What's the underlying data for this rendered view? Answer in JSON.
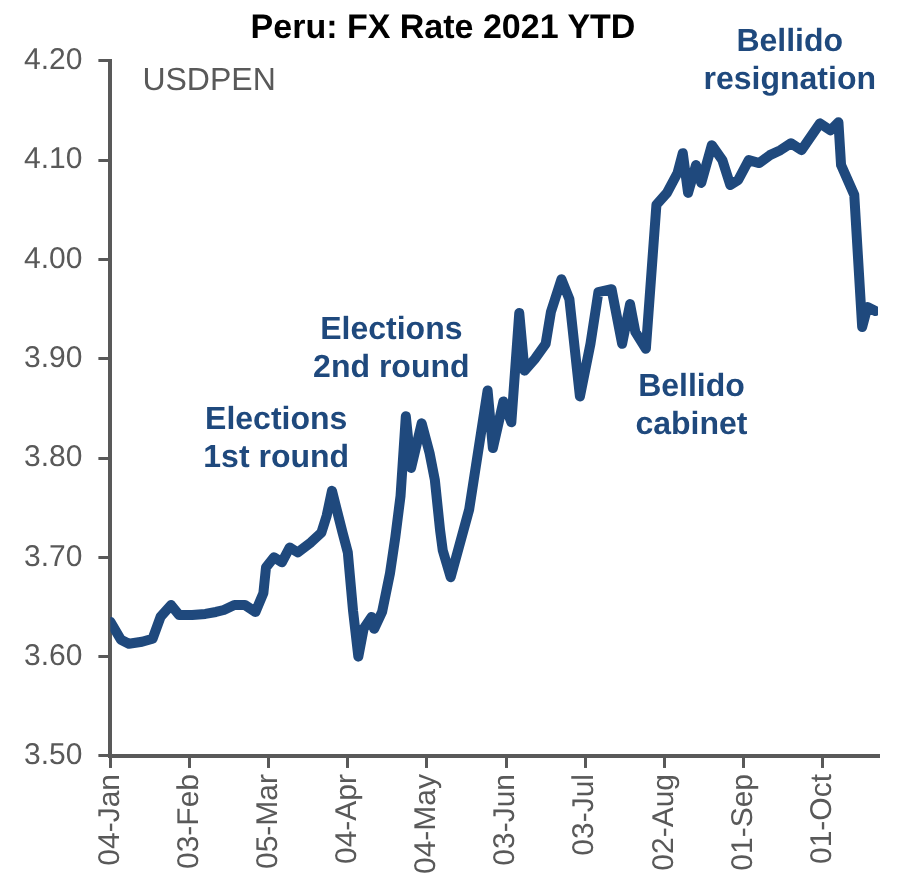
{
  "chart_data": {
    "type": "line",
    "title": "Peru: FX Rate 2021 YTD",
    "ylabel": "USDPEN",
    "xlim": [
      "2021-01-04",
      "2021-10-22"
    ],
    "xticks": [
      {
        "value": "2021-01-04",
        "label": "04-Jan"
      },
      {
        "value": "2021-02-03",
        "label": "03-Feb"
      },
      {
        "value": "2021-03-05",
        "label": "05-Mar"
      },
      {
        "value": "2021-04-04",
        "label": "04-Apr"
      },
      {
        "value": "2021-05-04",
        "label": "04-May"
      },
      {
        "value": "2021-06-03",
        "label": "03-Jun"
      },
      {
        "value": "2021-07-03",
        "label": "03-Jul"
      },
      {
        "value": "2021-08-02",
        "label": "02-Aug"
      },
      {
        "value": "2021-09-01",
        "label": "01-Sep"
      },
      {
        "value": "2021-10-01",
        "label": "01-Oct"
      }
    ],
    "ylim": [
      3.5,
      4.2
    ],
    "yticks": [
      {
        "value": 3.5,
        "label": "3.50"
      },
      {
        "value": 3.6,
        "label": "3.60"
      },
      {
        "value": 3.7,
        "label": "3.70"
      },
      {
        "value": 3.8,
        "label": "3.80"
      },
      {
        "value": 3.9,
        "label": "3.90"
      },
      {
        "value": 4.0,
        "label": "4.00"
      },
      {
        "value": 4.1,
        "label": "4.10"
      },
      {
        "value": 4.2,
        "label": "4.20"
      }
    ],
    "marker": "none",
    "legend": false,
    "series": [
      {
        "color": "#1f497d",
        "x": [
          "2021-01-04",
          "2021-01-08",
          "2021-01-11",
          "2021-01-16",
          "2021-01-20",
          "2021-01-23",
          "2021-01-27",
          "2021-01-30",
          "2021-02-04",
          "2021-02-09",
          "2021-02-13",
          "2021-02-16",
          "2021-02-20",
          "2021-02-24",
          "2021-02-28",
          "2021-03-03",
          "2021-03-04",
          "2021-03-07",
          "2021-03-10",
          "2021-03-13",
          "2021-03-16",
          "2021-03-21",
          "2021-03-25",
          "2021-03-27",
          "2021-03-29",
          "2021-04-02",
          "2021-04-04",
          "2021-04-06",
          "2021-04-08",
          "2021-04-10",
          "2021-04-13",
          "2021-04-14",
          "2021-04-17",
          "2021-04-20",
          "2021-04-22",
          "2021-04-24",
          "2021-04-26",
          "2021-04-28",
          "2021-05-02",
          "2021-05-05",
          "2021-05-07",
          "2021-05-09",
          "2021-05-10",
          "2021-05-13",
          "2021-05-20",
          "2021-05-27",
          "2021-05-29",
          "2021-06-02",
          "2021-06-05",
          "2021-06-08",
          "2021-06-10",
          "2021-06-14",
          "2021-06-18",
          "2021-06-20",
          "2021-06-24",
          "2021-06-27",
          "2021-07-01",
          "2021-07-05",
          "2021-07-08",
          "2021-07-13",
          "2021-07-17",
          "2021-07-20",
          "2021-07-22",
          "2021-07-26",
          "2021-07-30",
          "2021-08-03",
          "2021-08-07",
          "2021-08-09",
          "2021-08-11",
          "2021-08-14",
          "2021-08-16",
          "2021-08-20",
          "2021-08-24",
          "2021-08-27",
          "2021-08-30",
          "2021-09-03",
          "2021-09-07",
          "2021-09-11",
          "2021-09-15",
          "2021-09-19",
          "2021-09-23",
          "2021-09-30",
          "2021-10-04",
          "2021-10-07",
          "2021-10-08",
          "2021-10-13",
          "2021-10-16",
          "2021-10-18",
          "2021-10-21"
        ],
        "values": [
          3.635,
          3.617,
          3.613,
          3.615,
          3.618,
          3.64,
          3.652,
          3.642,
          3.642,
          3.643,
          3.645,
          3.647,
          3.652,
          3.652,
          3.645,
          3.664,
          3.69,
          3.7,
          3.695,
          3.71,
          3.705,
          3.715,
          3.725,
          3.742,
          3.767,
          3.725,
          3.705,
          3.646,
          3.6,
          3.628,
          3.64,
          3.628,
          3.645,
          3.684,
          3.72,
          3.762,
          3.842,
          3.79,
          3.835,
          3.805,
          3.778,
          3.727,
          3.707,
          3.68,
          3.748,
          3.868,
          3.81,
          3.857,
          3.836,
          3.946,
          3.888,
          3.9,
          3.915,
          3.947,
          3.98,
          3.96,
          3.862,
          3.915,
          3.967,
          3.97,
          3.915,
          3.955,
          3.927,
          3.91,
          4.055,
          4.067,
          4.087,
          4.107,
          4.067,
          4.095,
          4.077,
          4.115,
          4.1,
          4.075,
          4.08,
          4.1,
          4.097,
          4.105,
          4.11,
          4.117,
          4.11,
          4.137,
          4.13,
          4.138,
          4.095,
          4.065,
          3.932,
          3.952,
          3.948
        ]
      }
    ],
    "annotations": [
      "Elections\n1st round",
      "Elections\n2nd round",
      "Bellido\ncabinet",
      "Bellido\nresignation"
    ]
  }
}
